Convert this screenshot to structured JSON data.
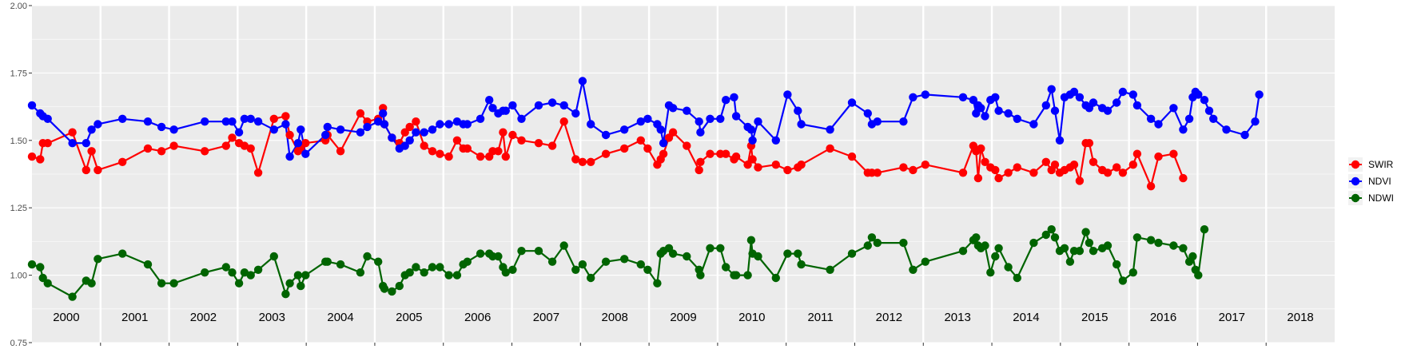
{
  "chart_data": {
    "type": "line",
    "ylim": [
      0.75,
      2.0
    ],
    "y_ticks": [
      "0.75",
      "1.00",
      "1.25",
      "1.50",
      "1.75",
      "2.00"
    ],
    "y_tick_values": [
      0.75,
      1.0,
      1.25,
      1.5,
      1.75,
      2.0
    ],
    "xlim": [
      2000.0,
      2019.0
    ],
    "year_labels": [
      "2000",
      "2001",
      "2002",
      "2003",
      "2004",
      "2005",
      "2006",
      "2007",
      "2008",
      "2009",
      "2010",
      "2011",
      "2012",
      "2013",
      "2014",
      "2015",
      "2016",
      "2017",
      "2018"
    ],
    "panel_background": "#ebebeb",
    "grid": true,
    "legend_position": "right",
    "series": [
      {
        "name": "SWIR",
        "color": "#ff0000",
        "x": [
          2000.0,
          2000.12,
          2000.16,
          2000.23,
          2000.59,
          2000.79,
          2000.87,
          2000.96,
          2001.32,
          2001.69,
          2001.89,
          2002.07,
          2002.52,
          2002.83,
          2002.92,
          2003.02,
          2003.1,
          2003.19,
          2003.3,
          2003.53,
          2003.7,
          2003.76,
          2003.88,
          2003.92,
          2003.99,
          2004.28,
          2004.31,
          2004.5,
          2004.79,
          2004.89,
          2005.05,
          2005.12,
          2005.14,
          2005.25,
          2005.36,
          2005.44,
          2005.51,
          2005.6,
          2005.72,
          2005.84,
          2005.95,
          2006.08,
          2006.2,
          2006.29,
          2006.35,
          2006.54,
          2006.67,
          2006.72,
          2006.8,
          2006.87,
          2006.91,
          2007.01,
          2007.14,
          2007.39,
          2007.59,
          2007.76,
          2007.93,
          2008.03,
          2008.15,
          2008.37,
          2008.64,
          2008.88,
          2008.98,
          2009.12,
          2009.17,
          2009.21,
          2009.29,
          2009.35,
          2009.55,
          2009.73,
          2009.75,
          2009.89,
          2010.04,
          2010.12,
          2010.24,
          2010.27,
          2010.44,
          2010.49,
          2010.51,
          2010.59,
          2010.85,
          2011.02,
          2011.17,
          2011.22,
          2011.64,
          2011.96,
          2012.19,
          2012.25,
          2012.33,
          2012.71,
          2012.85,
          2013.03,
          2013.58,
          2013.73,
          2013.77,
          2013.8,
          2013.84,
          2013.9,
          2013.98,
          2014.05,
          2014.1,
          2014.24,
          2014.37,
          2014.61,
          2014.79,
          2014.87,
          2014.92,
          2014.99,
          2015.06,
          2015.14,
          2015.2,
          2015.28,
          2015.37,
          2015.42,
          2015.48,
          2015.61,
          2015.69,
          2015.82,
          2015.91,
          2016.06,
          2016.12,
          2016.32,
          2016.43,
          2016.65,
          2016.79,
          2016.88,
          2016.93,
          2016.97,
          2017.01,
          2017.1,
          2017.17,
          2017.23,
          2017.42,
          2017.69,
          2017.84,
          2017.9,
          2017.94,
          2018.02,
          2018.07,
          2018.11,
          2018.19,
          2018.36,
          2018.53,
          2018.57,
          2018.63,
          2018.67
        ]
      },
      {
        "name": "NDVI",
        "color": "#0000ff",
        "x": [
          2000.0,
          2000.12,
          2000.16,
          2000.23,
          2000.59,
          2000.79,
          2000.87,
          2000.96,
          2001.32,
          2001.69,
          2001.89,
          2002.07,
          2002.52,
          2002.83,
          2002.92,
          2003.02,
          2003.1,
          2003.19,
          2003.3,
          2003.53,
          2003.7,
          2003.76,
          2003.88,
          2003.92,
          2003.99,
          2004.28,
          2004.31,
          2004.5,
          2004.79,
          2004.89,
          2005.05,
          2005.12,
          2005.14,
          2005.25,
          2005.36,
          2005.44,
          2005.51,
          2005.6,
          2005.72,
          2005.84,
          2005.95,
          2006.08,
          2006.2,
          2006.29,
          2006.35,
          2006.54,
          2006.67,
          2006.72,
          2006.8,
          2006.87,
          2006.91,
          2007.01,
          2007.14,
          2007.39,
          2007.59,
          2007.76,
          2007.93,
          2008.03,
          2008.15,
          2008.37,
          2008.64,
          2008.88,
          2008.98,
          2009.12,
          2009.17,
          2009.21,
          2009.29,
          2009.35,
          2009.55,
          2009.73,
          2009.75,
          2009.89,
          2010.04,
          2010.12,
          2010.24,
          2010.27,
          2010.44,
          2010.49,
          2010.51,
          2010.59,
          2010.85,
          2011.02,
          2011.17,
          2011.22,
          2011.64,
          2011.96,
          2012.19,
          2012.25,
          2012.33,
          2012.71,
          2012.85,
          2013.03,
          2013.58,
          2013.73,
          2013.77,
          2013.8,
          2013.84,
          2013.9,
          2013.98,
          2014.05,
          2014.1,
          2014.24,
          2014.37,
          2014.61,
          2014.79,
          2014.87,
          2014.92,
          2014.99,
          2015.06,
          2015.14,
          2015.2,
          2015.28,
          2015.37,
          2015.42,
          2015.48,
          2015.61,
          2015.69,
          2015.82,
          2015.91,
          2016.06,
          2016.12,
          2016.32,
          2016.43,
          2016.65,
          2016.79,
          2016.88,
          2016.93,
          2016.97,
          2017.01,
          2017.1,
          2017.17,
          2017.23,
          2017.42,
          2017.69,
          2017.84,
          2017.9,
          2017.94,
          2018.02,
          2018.07,
          2018.11,
          2018.19,
          2018.36,
          2018.53,
          2018.57,
          2018.63,
          2018.67
        ]
      },
      {
        "name": "NDWI",
        "color": "#006400",
        "x": [
          2000.0,
          2000.12,
          2000.16,
          2000.23,
          2000.59,
          2000.79,
          2000.87,
          2000.96,
          2001.32,
          2001.69,
          2001.89,
          2002.07,
          2002.52,
          2002.83,
          2002.92,
          2003.02,
          2003.1,
          2003.19,
          2003.3,
          2003.53,
          2003.7,
          2003.76,
          2003.88,
          2003.92,
          2003.99,
          2004.28,
          2004.31,
          2004.5,
          2004.79,
          2004.89,
          2005.05,
          2005.12,
          2005.14,
          2005.25,
          2005.36,
          2005.44,
          2005.51,
          2005.6,
          2005.72,
          2005.84,
          2005.95,
          2006.08,
          2006.2,
          2006.29,
          2006.35,
          2006.54,
          2006.67,
          2006.72,
          2006.8,
          2006.87,
          2006.91,
          2007.01,
          2007.14,
          2007.39,
          2007.59,
          2007.76,
          2007.93,
          2008.03,
          2008.15,
          2008.37,
          2008.64,
          2008.88,
          2008.98,
          2009.12,
          2009.17,
          2009.21,
          2009.29,
          2009.35,
          2009.55,
          2009.73,
          2009.75,
          2009.89,
          2010.04,
          2010.12,
          2010.24,
          2010.27,
          2010.44,
          2010.49,
          2010.51,
          2010.59,
          2010.85,
          2011.02,
          2011.17,
          2011.22,
          2011.64,
          2011.96,
          2012.19,
          2012.25,
          2012.33,
          2012.71,
          2012.85,
          2013.03,
          2013.58,
          2013.73,
          2013.77,
          2013.8,
          2013.84,
          2013.9,
          2013.98,
          2014.05,
          2014.1,
          2014.24,
          2014.37,
          2014.61,
          2014.79,
          2014.87,
          2014.92,
          2014.99,
          2015.06,
          2015.14,
          2015.2,
          2015.28,
          2015.37,
          2015.42,
          2015.48,
          2015.61,
          2015.69,
          2015.82,
          2015.91,
          2016.06,
          2016.12,
          2016.32,
          2016.43,
          2016.65,
          2016.79,
          2016.88,
          2016.93,
          2016.97,
          2017.01,
          2017.1,
          2017.17,
          2017.23,
          2017.42,
          2017.69,
          2017.84,
          2017.9,
          2017.94,
          2018.02,
          2018.07,
          2018.11,
          2018.19,
          2018.36,
          2018.53,
          2018.57,
          2018.63,
          2018.67
        ]
      }
    ],
    "segments": [
      {
        "x": [
          2000.0,
          2000.12,
          2000.16,
          2000.23,
          2000.59,
          2000.79,
          2000.87,
          2000.96,
          2001.32,
          2001.69,
          2001.89,
          2002.07,
          2002.52,
          2002.83,
          2002.92,
          2003.02,
          2003.1,
          2003.19,
          2003.3,
          2003.53,
          2003.7,
          2003.76,
          2003.88,
          2003.92,
          2003.99,
          2004.28,
          2004.31,
          2004.5,
          2004.79,
          2004.89,
          2005.05,
          2005.12,
          2005.14,
          2005.25,
          2005.36,
          2005.44,
          2005.51,
          2005.6,
          2005.72,
          2005.84,
          2005.95,
          2006.08,
          2006.2,
          2006.29,
          2006.35,
          2006.54,
          2006.67,
          2006.72,
          2006.8,
          2006.87,
          2006.91,
          2007.01,
          2007.14,
          2007.39,
          2007.59,
          2007.76,
          2007.93,
          2008.03,
          2008.15,
          2008.37,
          2008.64,
          2008.88,
          2008.98,
          2009.12,
          2009.17,
          2009.21,
          2009.29,
          2009.35,
          2009.55,
          2009.73,
          2009.75,
          2009.89,
          2010.04,
          2010.12,
          2010.24,
          2010.27,
          2010.44,
          2010.49,
          2010.51,
          2010.59,
          2010.85,
          2011.02,
          2011.17,
          2011.22,
          2011.64,
          2011.96,
          2012.19,
          2012.25,
          2012.33,
          2012.71,
          2012.85,
          2013.03,
          2013.58,
          2013.73,
          2013.77,
          2013.8,
          2013.84,
          2013.9,
          2013.98,
          2014.05,
          2014.1,
          2014.24,
          2014.37,
          2014.61,
          2014.79,
          2014.87,
          2014.92,
          2014.99,
          2015.06,
          2015.14,
          2015.2,
          2015.28,
          2015.37,
          2015.42,
          2015.48,
          2015.61,
          2015.69,
          2015.82,
          2015.91,
          2016.06,
          2016.12,
          2016.32,
          2016.43,
          2016.65,
          2016.79,
          2016.88,
          2016.93,
          2016.97,
          2017.01,
          2017.1,
          2017.17,
          2017.23,
          2017.42,
          2017.69,
          2017.84,
          2017.9,
          2017.94,
          2018.02,
          2018.07,
          2018.11,
          2018.19,
          2018.36,
          2018.53,
          2018.57,
          2018.63,
          2018.67
        ]
      }
    ]
  }
}
